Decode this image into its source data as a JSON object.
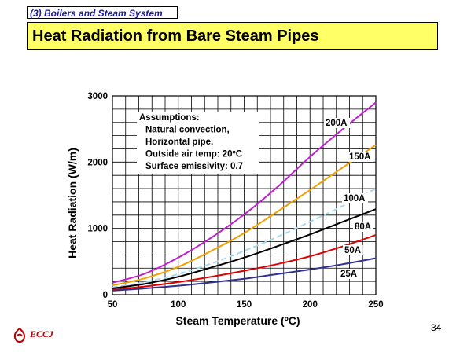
{
  "header": {
    "section": "(3) Boilers and Steam System",
    "title": "Heat Radiation from Bare Steam Pipes"
  },
  "footer": {
    "page_number": "34",
    "logo_text": "ECCJ"
  },
  "colors": {
    "title_bg": "#ffff66",
    "section_text": "#1a1aa0",
    "logo": "#c00000"
  },
  "chart_data": {
    "type": "line",
    "xlabel": "Steam Temperature (ºC)",
    "ylabel": "Heat Radiation (W/m)",
    "xlim": [
      50,
      250
    ],
    "ylim": [
      0,
      3000
    ],
    "xticks": [
      "50",
      "100",
      "150",
      "200",
      "250"
    ],
    "yticks": [
      "0",
      "1000",
      "2000",
      "3000"
    ],
    "grid": true,
    "annotation": [
      "Assumptions:",
      "Natural convection,",
      "Horizontal pipe,",
      "Outside air temp: 20ºC",
      "Surface emissivity: 0.7"
    ],
    "series": [
      {
        "name": "200A",
        "color": "#c020d0",
        "dash": false,
        "x": [
          50,
          75,
          100,
          125,
          150,
          175,
          200,
          225,
          250
        ],
        "y": [
          180,
          320,
          560,
          860,
          1210,
          1620,
          2080,
          2500,
          2900
        ]
      },
      {
        "name": "150A",
        "color": "#f0a000",
        "dash": false,
        "x": [
          50,
          75,
          100,
          125,
          150,
          175,
          200,
          225,
          250
        ],
        "y": [
          140,
          250,
          420,
          660,
          930,
          1250,
          1580,
          1920,
          2260
        ]
      },
      {
        "name": "100A",
        "color": "#a8d8f0",
        "dash": true,
        "x": [
          50,
          75,
          100,
          125,
          150,
          175,
          200,
          225,
          250
        ],
        "y": [
          110,
          190,
          310,
          470,
          660,
          870,
          1100,
          1340,
          1600
        ]
      },
      {
        "name": "80A",
        "color": "#000000",
        "dash": false,
        "x": [
          50,
          75,
          100,
          125,
          150,
          175,
          200,
          225,
          250
        ],
        "y": [
          95,
          165,
          270,
          410,
          560,
          730,
          910,
          1100,
          1290
        ]
      },
      {
        "name": "50A",
        "color": "#e00000",
        "dash": false,
        "x": [
          50,
          75,
          100,
          125,
          150,
          175,
          200,
          225,
          250
        ],
        "y": [
          75,
          125,
          190,
          270,
          360,
          460,
          580,
          730,
          900
        ]
      },
      {
        "name": "25A",
        "color": "#303090",
        "dash": false,
        "x": [
          50,
          75,
          100,
          125,
          150,
          175,
          200,
          225,
          250
        ],
        "y": [
          60,
          95,
          135,
          185,
          240,
          310,
          380,
          460,
          550
        ]
      }
    ]
  }
}
